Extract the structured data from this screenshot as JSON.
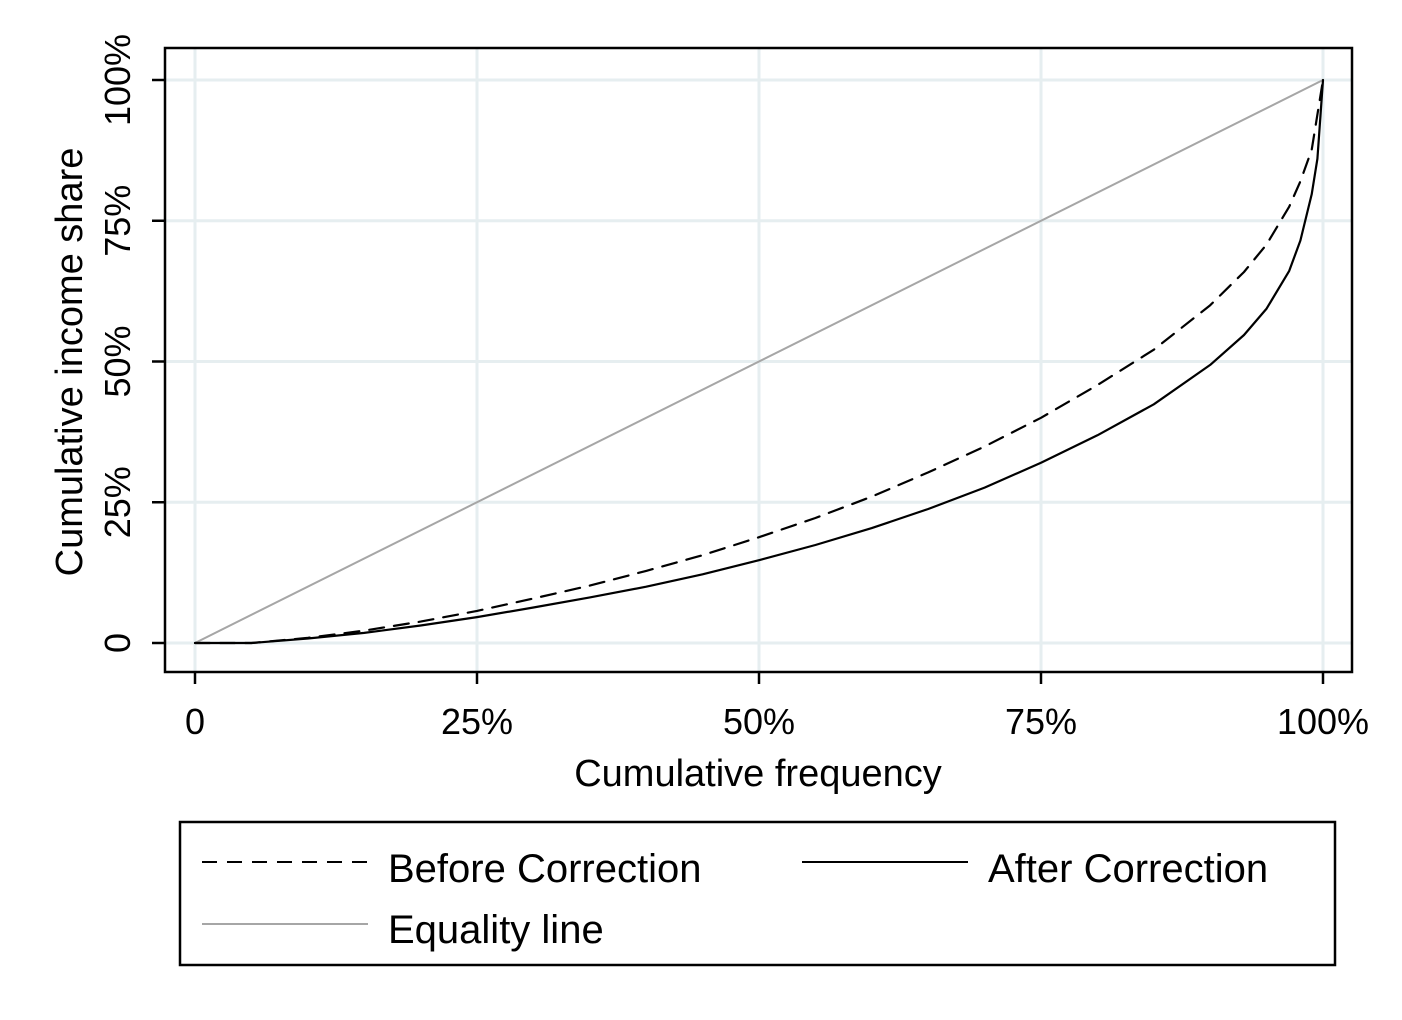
{
  "chart_data": {
    "type": "line",
    "xlabel": "Cumulative frequency",
    "ylabel": "Cumulative income share",
    "xlim": [
      0,
      1
    ],
    "ylim": [
      0,
      1
    ],
    "x_ticks": [
      {
        "value": 0,
        "label": "0"
      },
      {
        "value": 0.25,
        "label": "25%"
      },
      {
        "value": 0.5,
        "label": "50%"
      },
      {
        "value": 0.75,
        "label": "75%"
      },
      {
        "value": 1,
        "label": "100%"
      }
    ],
    "y_ticks": [
      {
        "value": 0,
        "label": "0"
      },
      {
        "value": 0.25,
        "label": "25%"
      },
      {
        "value": 0.5,
        "label": "50%"
      },
      {
        "value": 0.75,
        "label": "75%"
      },
      {
        "value": 1,
        "label": "100%"
      }
    ],
    "grid": true,
    "legend_position": "bottom",
    "series": [
      {
        "name": "Before Correction",
        "style": "dashed",
        "color": "#000000",
        "x": [
          0,
          0.05,
          0.1,
          0.15,
          0.2,
          0.25,
          0.3,
          0.35,
          0.4,
          0.45,
          0.5,
          0.55,
          0.6,
          0.65,
          0.7,
          0.75,
          0.8,
          0.85,
          0.9,
          0.93,
          0.95,
          0.97,
          0.98,
          0.99,
          1.0
        ],
        "y": [
          0,
          0.0,
          0.009,
          0.022,
          0.038,
          0.057,
          0.079,
          0.102,
          0.128,
          0.156,
          0.188,
          0.222,
          0.26,
          0.303,
          0.349,
          0.4,
          0.458,
          0.521,
          0.6,
          0.659,
          0.708,
          0.775,
          0.82,
          0.876,
          1.0
        ]
      },
      {
        "name": "After Correction",
        "style": "solid",
        "color": "#000000",
        "x": [
          0,
          0.05,
          0.1,
          0.15,
          0.2,
          0.25,
          0.3,
          0.35,
          0.4,
          0.45,
          0.5,
          0.55,
          0.6,
          0.65,
          0.7,
          0.75,
          0.8,
          0.85,
          0.9,
          0.93,
          0.95,
          0.97,
          0.98,
          0.99,
          0.995,
          1.0
        ],
        "y": [
          0,
          0.0,
          0.008,
          0.018,
          0.031,
          0.046,
          0.063,
          0.081,
          0.1,
          0.122,
          0.147,
          0.174,
          0.204,
          0.238,
          0.276,
          0.32,
          0.369,
          0.424,
          0.494,
          0.547,
          0.594,
          0.661,
          0.715,
          0.797,
          0.86,
          1.0
        ]
      },
      {
        "name": "Equality line",
        "style": "solid",
        "color": "#a6a6a6",
        "x": [
          0,
          1
        ],
        "y": [
          0,
          1
        ]
      }
    ]
  }
}
